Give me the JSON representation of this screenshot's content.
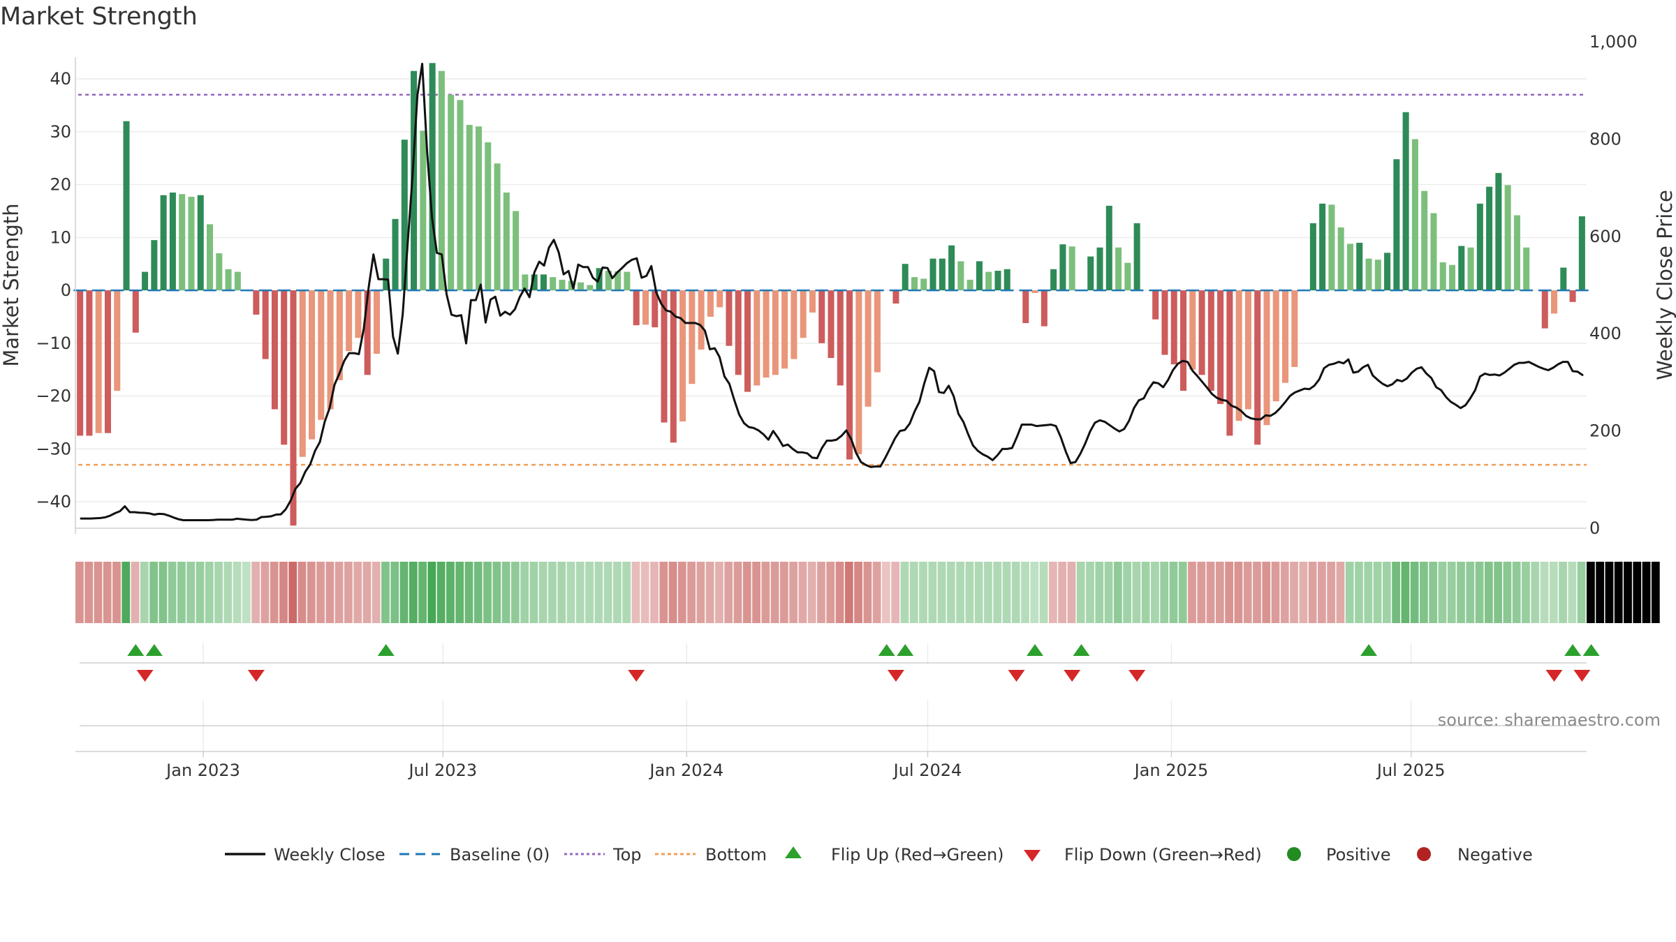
{
  "chart_data": {
    "type": "bar",
    "title": "Market Strength",
    "y_left_label": "Market Strength",
    "y_right_label": "Weekly Close Price",
    "y_left_range": [
      -45,
      47
    ],
    "y_right_range": [
      0,
      1000
    ],
    "y_left_ticks": [
      -40,
      -30,
      -20,
      -10,
      0,
      10,
      20,
      30,
      40
    ],
    "y_left_tick_labels": [
      "−40",
      "−30",
      "−20",
      "−10",
      "0",
      "10",
      "20",
      "30",
      "40"
    ],
    "y_right_ticks": [
      0,
      200,
      400,
      600,
      800,
      1000
    ],
    "y_right_tick_labels": [
      "0",
      "200",
      "400",
      "600",
      "800",
      "1,000"
    ],
    "x_start": "2022-09-30",
    "week_step_days": 7,
    "x_ticks": [
      {
        "date": "2023-01-01",
        "label": "Jan 2023"
      },
      {
        "date": "2023-07-01",
        "label": "Jul 2023"
      },
      {
        "date": "2024-01-01",
        "label": "Jan 2024"
      },
      {
        "date": "2024-07-01",
        "label": "Jul 2024"
      },
      {
        "date": "2025-01-01",
        "label": "Jan 2025"
      },
      {
        "date": "2025-07-01",
        "label": "Jul 2025"
      }
    ],
    "top_line": 37,
    "bottom_line": -33,
    "strength": [
      -27.5,
      -27.5,
      -27,
      -27,
      -19,
      32,
      -8,
      3.5,
      9.5,
      18,
      18.5,
      18.2,
      17.7,
      18,
      12.5,
      7,
      4,
      3.5,
      0,
      -4.6,
      -13,
      -22.5,
      -29.2,
      -44.5,
      -31.5,
      -28.2,
      -24.5,
      -22.5,
      -17,
      -11.5,
      -9,
      -16,
      -12,
      6,
      13.5,
      28.5,
      41.5,
      30.2,
      43,
      41.5,
      37,
      36,
      31.3,
      31,
      28,
      24,
      18.5,
      15,
      3,
      3,
      3,
      2.5,
      2,
      1.8,
      1.5,
      1,
      4.2,
      3.7,
      3.6,
      3.5,
      -6.6,
      -6.5,
      -7,
      -25,
      -28.8,
      -24.8,
      -17.7,
      -11.2,
      -5,
      -3.2,
      -10.5,
      -16,
      -19.2,
      -18,
      -16.5,
      -16,
      -14.8,
      -13,
      -9,
      -4.2,
      -10,
      -12.8,
      -18,
      -32,
      -31,
      -22,
      -15.5,
      0,
      -2.5,
      5,
      2.5,
      2.2,
      6,
      6,
      8.5,
      5.5,
      2,
      5.5,
      3.5,
      3.7,
      4,
      0,
      -6.2,
      -0.5,
      -6.8,
      4,
      8.7,
      8.3,
      0,
      6.4,
      8.1,
      16,
      8.1,
      5.2,
      12.7,
      0,
      -5.5,
      -12.2,
      -14,
      -19,
      -15,
      -16,
      -19,
      -21.5,
      -27.5,
      -24.7,
      -22.5,
      -29.2,
      -25.5,
      -21,
      -17.5,
      -14.5,
      0,
      12.7,
      16.4,
      16.2,
      11.9,
      8.8,
      9,
      6,
      5.8,
      7.1,
      24.8,
      33.7,
      28.6,
      18.8,
      14.6,
      5.3,
      4.8,
      8.4,
      8.1,
      16.4,
      19.6,
      22.2,
      19.9,
      14.2,
      8.1,
      0,
      -7.2,
      -4.4,
      4.3,
      -2.2,
      14
    ],
    "weekly_close": [
      20,
      20,
      20,
      20.5,
      21,
      22.5,
      26,
      31,
      35,
      45,
      33,
      33,
      32,
      31.5,
      30.5,
      28,
      29.5,
      29,
      26,
      22,
      18.5,
      16.5,
      16.5,
      16.5,
      16.5,
      16.5,
      16.5,
      17,
      17.5,
      17.5,
      17.5,
      17.5,
      19.5,
      18.5,
      17.5,
      17,
      17.5,
      23,
      23.5,
      24.5,
      28,
      28.5,
      39,
      57,
      81,
      93,
      116,
      131,
      159,
      177,
      219,
      247,
      295,
      318,
      344,
      360,
      360,
      358,
      410,
      495,
      563,
      512,
      512,
      511,
      394,
      359,
      440,
      584,
      723,
      890,
      955,
      775,
      639,
      566,
      563,
      481,
      439,
      436,
      438,
      380,
      469,
      469,
      501,
      423,
      470,
      476,
      437,
      445,
      439,
      450,
      475,
      493,
      475,
      526,
      548,
      540,
      577,
      593,
      567,
      522,
      529,
      493,
      542,
      537,
      537,
      515,
      507,
      536,
      535,
      514,
      526,
      535,
      545,
      552,
      555,
      515,
      519,
      539,
      485,
      462,
      448,
      445,
      435,
      432,
      422,
      422,
      422,
      418,
      406,
      368,
      370,
      352,
      312,
      297,
      264,
      234,
      216,
      208,
      206,
      201,
      193,
      182,
      200,
      186,
      169,
      172,
      163,
      156,
      156,
      154,
      145,
      144,
      165,
      180,
      180,
      182,
      190,
      201,
      183,
      155,
      136,
      130,
      126,
      127,
      127,
      145,
      165,
      185,
      200,
      202,
      215,
      240,
      260,
      298,
      330,
      323,
      280,
      278,
      293,
      272,
      235,
      219,
      193,
      170,
      159,
      152,
      147,
      140,
      150,
      163,
      163,
      165,
      188,
      213,
      213,
      213,
      210,
      211,
      212,
      213,
      210,
      187,
      158,
      134,
      136,
      153,
      174,
      199,
      217,
      222,
      219,
      212,
      205,
      199,
      204,
      221,
      247,
      263,
      267,
      286,
      300,
      298,
      290,
      305,
      325,
      338,
      344,
      342,
      324,
      313,
      301,
      289,
      276,
      268,
      264,
      262,
      252,
      248,
      241,
      231,
      226,
      224,
      224,
      232,
      231,
      237,
      247,
      259,
      272,
      279,
      283,
      287,
      286,
      293,
      306,
      329,
      336,
      338,
      342,
      339,
      347,
      320,
      322,
      331,
      336,
      314,
      305,
      297,
      292,
      296,
      305,
      302,
      308,
      320,
      328,
      331,
      318,
      309,
      290,
      284,
      270,
      260,
      254,
      247,
      253,
      267,
      284,
      312,
      318,
      315,
      316,
      314,
      320,
      328,
      336,
      340,
      340,
      342,
      337,
      332,
      328,
      325,
      330,
      337,
      342,
      342,
      323,
      322,
      315
    ],
    "regime": [
      "r",
      "r",
      "r",
      "r",
      "r",
      "g",
      "r",
      "g",
      "g",
      "g",
      "g",
      "g",
      "g",
      "g",
      "g",
      "g",
      "g",
      "g",
      "g",
      "r",
      "r",
      "r",
      "r",
      "r",
      "r",
      "r",
      "r",
      "r",
      "r",
      "r",
      "r",
      "r",
      "r",
      "g",
      "g",
      "g",
      "g",
      "g",
      "g",
      "g",
      "g",
      "g",
      "g",
      "g",
      "g",
      "g",
      "g",
      "g",
      "g",
      "g",
      "g",
      "g",
      "g",
      "g",
      "g",
      "g",
      "g",
      "g",
      "g",
      "g",
      "r",
      "r",
      "r",
      "r",
      "r",
      "r",
      "r",
      "r",
      "r",
      "r",
      "r",
      "r",
      "r",
      "r",
      "r",
      "r",
      "r",
      "r",
      "r",
      "r",
      "r",
      "r",
      "r",
      "r",
      "r",
      "r",
      "r",
      "r",
      "r",
      "g",
      "g",
      "g",
      "g",
      "g",
      "g",
      "g",
      "g",
      "g",
      "g",
      "g",
      "g",
      "g",
      "g",
      "g",
      "g",
      "r",
      "r",
      "r",
      "g",
      "g",
      "g",
      "g",
      "g",
      "g",
      "g",
      "g",
      "g",
      "g",
      "g",
      "g",
      "r",
      "r",
      "r",
      "r",
      "r",
      "r",
      "r",
      "r",
      "r",
      "r",
      "r",
      "r",
      "r",
      "r",
      "r",
      "r",
      "r",
      "g",
      "g",
      "g",
      "g",
      "g",
      "g",
      "g",
      "g",
      "g",
      "g",
      "g",
      "g",
      "g",
      "g",
      "g",
      "g",
      "g",
      "g",
      "g",
      "g",
      "g",
      "g",
      "g",
      "g",
      "g",
      "g",
      "g",
      "g",
      "r",
      "r",
      "r",
      "g",
      "r",
      "g"
    ],
    "intensity": [
      0.5,
      0.5,
      0.5,
      0.5,
      0.5,
      0.9,
      0.3,
      0.3,
      0.55,
      0.55,
      0.45,
      0.45,
      0.4,
      0.4,
      0.35,
      0.3,
      0.25,
      0.2,
      0.15,
      0.3,
      0.4,
      0.5,
      0.6,
      0.8,
      0.55,
      0.5,
      0.45,
      0.45,
      0.4,
      0.4,
      0.35,
      0.35,
      0.3,
      0.55,
      0.6,
      0.75,
      0.85,
      0.75,
      0.95,
      0.85,
      0.8,
      0.75,
      0.7,
      0.65,
      0.6,
      0.55,
      0.5,
      0.45,
      0.35,
      0.35,
      0.3,
      0.3,
      0.3,
      0.25,
      0.25,
      0.25,
      0.25,
      0.25,
      0.25,
      0.25,
      0.2,
      0.2,
      0.25,
      0.5,
      0.55,
      0.5,
      0.45,
      0.4,
      0.35,
      0.3,
      0.4,
      0.45,
      0.5,
      0.5,
      0.45,
      0.45,
      0.45,
      0.4,
      0.35,
      0.3,
      0.4,
      0.45,
      0.55,
      0.7,
      0.6,
      0.5,
      0.4,
      0.15,
      0.25,
      0.25,
      0.25,
      0.25,
      0.25,
      0.25,
      0.25,
      0.25,
      0.25,
      0.25,
      0.25,
      0.25,
      0.25,
      0.25,
      0.2,
      0.15,
      0.2,
      0.25,
      0.3,
      0.3,
      0.3,
      0.3,
      0.35,
      0.35,
      0.45,
      0.35,
      0.3,
      0.35,
      0.3,
      0.4,
      0.45,
      0.45,
      0.45,
      0.45,
      0.45,
      0.45,
      0.5,
      0.5,
      0.45,
      0.45,
      0.5,
      0.45,
      0.4,
      0.35,
      0.3,
      0.4,
      0.4,
      0.4,
      0.35,
      0.35,
      0.35,
      0.35,
      0.35,
      0.35,
      0.65,
      0.75,
      0.65,
      0.55,
      0.5,
      0.4,
      0.4,
      0.45,
      0.45,
      0.5,
      0.55,
      0.55,
      0.5,
      0.45,
      0.4,
      0.3,
      0.2,
      0.2,
      0.3,
      0.2,
      0.4
    ],
    "flip_up_weeks": [
      6,
      8,
      33,
      87,
      89,
      103,
      108,
      139,
      161,
      163
    ],
    "flip_down_weeks": [
      7,
      19,
      60,
      88,
      101,
      107,
      114,
      159,
      162
    ],
    "legend": [
      {
        "key": "weekly_close",
        "label": "Weekly Close",
        "color": "#111111"
      },
      {
        "key": "baseline",
        "label": "Baseline (0)",
        "color": "#1f77b4"
      },
      {
        "key": "top",
        "label": "Top",
        "color": "#9467bd"
      },
      {
        "key": "bottom",
        "label": "Bottom",
        "color": "#f0a05a"
      },
      {
        "key": "flip_up",
        "label": "Flip Up (Red→Green)",
        "color": "#2ca02c"
      },
      {
        "key": "flip_down",
        "label": "Flip Down (Green→Red)",
        "color": "#d62728"
      },
      {
        "key": "positive",
        "label": "Positive",
        "color": "#228b22"
      },
      {
        "key": "negative",
        "label": "Negative",
        "color": "#b22222"
      }
    ],
    "colors": {
      "positive_strong": "#2e8b57",
      "positive_light": "#7cbf7c",
      "negative_strong": "#cd5c5c",
      "negative_light": "#e9967a",
      "price_line": "#111111",
      "baseline": "#1f77b4",
      "top": "#9467bd",
      "bottom": "#f0a05a",
      "flip_up": "#2ca02c",
      "flip_down": "#d62728",
      "strip_green": "#3fa34d",
      "strip_red": "#c0504d",
      "grid": "#ececec"
    },
    "source": "source: sharemaestro.com"
  }
}
